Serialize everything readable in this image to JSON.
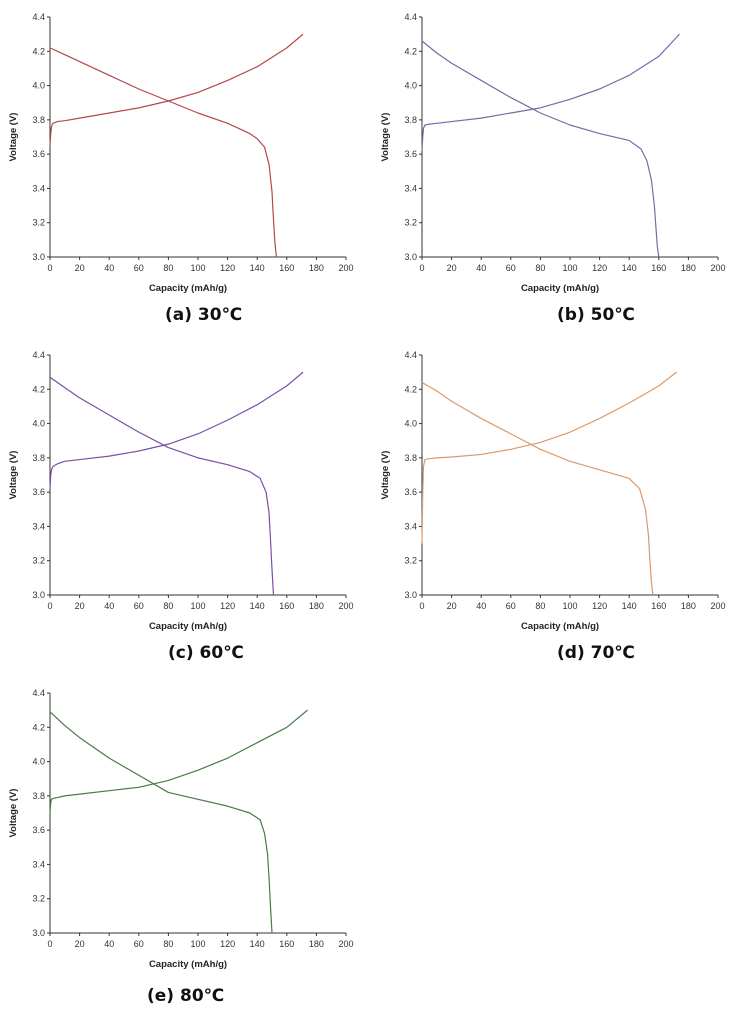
{
  "chart_data": [
    {
      "type": "line",
      "caption": "(a)  30℃",
      "xlabel": "Capacity (mAh/g)",
      "ylabel": "Voltage (V)",
      "xlim": [
        0,
        200
      ],
      "ylim": [
        3.0,
        4.4
      ],
      "xticks": [
        "0",
        "20",
        "40",
        "60",
        "80",
        "100",
        "120",
        "140",
        "160",
        "180",
        "200"
      ],
      "yticks": [
        "3.0",
        "3.2",
        "3.4",
        "3.6",
        "3.8",
        "4.0",
        "4.2",
        "4.4"
      ],
      "color": "#b5474a",
      "series": [
        {
          "x": [
            0,
            0.5,
            1,
            2,
            5,
            10,
            20,
            40,
            60,
            80,
            100,
            120,
            140,
            160,
            171
          ],
          "y": [
            3.65,
            3.72,
            3.76,
            3.78,
            3.79,
            3.795,
            3.81,
            3.84,
            3.87,
            3.91,
            3.96,
            4.03,
            4.11,
            4.22,
            4.3
          ]
        },
        {
          "x": [
            0,
            10,
            20,
            40,
            60,
            80,
            100,
            120,
            135,
            140,
            145,
            148,
            150,
            151,
            152,
            153
          ],
          "y": [
            4.22,
            4.18,
            4.14,
            4.06,
            3.98,
            3.91,
            3.84,
            3.78,
            3.72,
            3.69,
            3.64,
            3.54,
            3.38,
            3.22,
            3.08,
            3.0
          ]
        }
      ]
    },
    {
      "type": "line",
      "caption": "(b)  50℃",
      "xlabel": "Capacity (mAh/g)",
      "ylabel": "Voltage (V)",
      "xlim": [
        0,
        200
      ],
      "ylim": [
        3.0,
        4.4
      ],
      "xticks": [
        "0",
        "20",
        "40",
        "60",
        "80",
        "100",
        "120",
        "140",
        "160",
        "180",
        "200"
      ],
      "yticks": [
        "3.0",
        "3.2",
        "3.4",
        "3.6",
        "3.8",
        "4.0",
        "4.2",
        "4.4"
      ],
      "color": "#6d6fa8",
      "series": [
        {
          "x": [
            0,
            0.5,
            1,
            2,
            5,
            10,
            20,
            40,
            60,
            80,
            100,
            120,
            140,
            160,
            174
          ],
          "y": [
            3.62,
            3.7,
            3.75,
            3.77,
            3.775,
            3.78,
            3.79,
            3.81,
            3.84,
            3.87,
            3.92,
            3.98,
            4.06,
            4.17,
            4.3
          ]
        },
        {
          "x": [
            0,
            10,
            20,
            40,
            60,
            80,
            100,
            120,
            140,
            148,
            152,
            155,
            157,
            158,
            159,
            160
          ],
          "y": [
            4.26,
            4.19,
            4.13,
            4.03,
            3.93,
            3.84,
            3.77,
            3.72,
            3.68,
            3.63,
            3.56,
            3.45,
            3.3,
            3.18,
            3.06,
            3.0
          ]
        }
      ]
    },
    {
      "type": "line",
      "caption": "(c)  60℃",
      "xlabel": "Capacity (mAh/g)",
      "ylabel": "Voltage (V)",
      "xlim": [
        0,
        200
      ],
      "ylim": [
        3.0,
        4.4
      ],
      "xticks": [
        "0",
        "20",
        "40",
        "60",
        "80",
        "100",
        "120",
        "140",
        "160",
        "180",
        "200"
      ],
      "yticks": [
        "3.0",
        "3.2",
        "3.4",
        "3.6",
        "3.8",
        "4.0",
        "4.2",
        "4.4"
      ],
      "color": "#7b4fa6",
      "series": [
        {
          "x": [
            0,
            0.5,
            1,
            2,
            5,
            10,
            20,
            40,
            60,
            80,
            100,
            120,
            140,
            160,
            171
          ],
          "y": [
            3.62,
            3.7,
            3.73,
            3.75,
            3.765,
            3.78,
            3.79,
            3.81,
            3.84,
            3.88,
            3.94,
            4.02,
            4.11,
            4.22,
            4.3
          ]
        },
        {
          "x": [
            0,
            10,
            20,
            40,
            60,
            80,
            100,
            120,
            135,
            142,
            146,
            148,
            149,
            150,
            151
          ],
          "y": [
            4.27,
            4.21,
            4.15,
            4.05,
            3.95,
            3.86,
            3.8,
            3.76,
            3.72,
            3.68,
            3.6,
            3.48,
            3.32,
            3.15,
            3.0
          ]
        }
      ]
    },
    {
      "type": "line",
      "caption": "(d)  70℃",
      "xlabel": "Capacity (mAh/g)",
      "ylabel": "Voltage (V)",
      "xlim": [
        0,
        200
      ],
      "ylim": [
        3.0,
        4.4
      ],
      "xticks": [
        "0",
        "20",
        "40",
        "60",
        "80",
        "100",
        "120",
        "140",
        "160",
        "180",
        "200"
      ],
      "yticks": [
        "3.0",
        "3.2",
        "3.4",
        "3.6",
        "3.8",
        "4.0",
        "4.2",
        "4.4"
      ],
      "color": "#dc9a6a",
      "series": [
        {
          "x": [
            0,
            0.5,
            1,
            2,
            5,
            10,
            20,
            40,
            60,
            80,
            100,
            120,
            140,
            160,
            172
          ],
          "y": [
            3.3,
            3.6,
            3.75,
            3.79,
            3.795,
            3.8,
            3.805,
            3.82,
            3.85,
            3.89,
            3.95,
            4.03,
            4.12,
            4.22,
            4.3
          ]
        },
        {
          "x": [
            0,
            10,
            20,
            40,
            60,
            80,
            100,
            120,
            140,
            147,
            151,
            153,
            154,
            155,
            156
          ],
          "y": [
            4.24,
            4.19,
            4.13,
            4.03,
            3.94,
            3.85,
            3.78,
            3.73,
            3.68,
            3.62,
            3.5,
            3.35,
            3.2,
            3.08,
            3.0
          ]
        }
      ]
    },
    {
      "type": "line",
      "caption": "(e)  80℃",
      "xlabel": "Capacity (mAh/g)",
      "ylabel": "Voltage (V)",
      "xlim": [
        0,
        200
      ],
      "ylim": [
        3.0,
        4.4
      ],
      "xticks": [
        "0",
        "20",
        "40",
        "60",
        "80",
        "100",
        "120",
        "140",
        "160",
        "180",
        "200"
      ],
      "yticks": [
        "3.0",
        "3.2",
        "3.4",
        "3.6",
        "3.8",
        "4.0",
        "4.2",
        "4.4"
      ],
      "color": "#4a7a48",
      "series": [
        {
          "x": [
            0,
            0.5,
            1,
            2,
            5,
            10,
            20,
            40,
            60,
            80,
            100,
            120,
            140,
            160,
            174
          ],
          "y": [
            3.7,
            3.76,
            3.78,
            3.785,
            3.79,
            3.8,
            3.81,
            3.83,
            3.85,
            3.89,
            3.95,
            4.02,
            4.11,
            4.2,
            4.3
          ]
        },
        {
          "x": [
            0,
            10,
            20,
            40,
            60,
            80,
            100,
            120,
            135,
            142,
            145,
            147,
            148,
            149,
            150
          ],
          "y": [
            4.29,
            4.21,
            4.14,
            4.02,
            3.92,
            3.82,
            3.78,
            3.74,
            3.7,
            3.66,
            3.58,
            3.46,
            3.32,
            3.15,
            3.0
          ]
        }
      ]
    }
  ]
}
